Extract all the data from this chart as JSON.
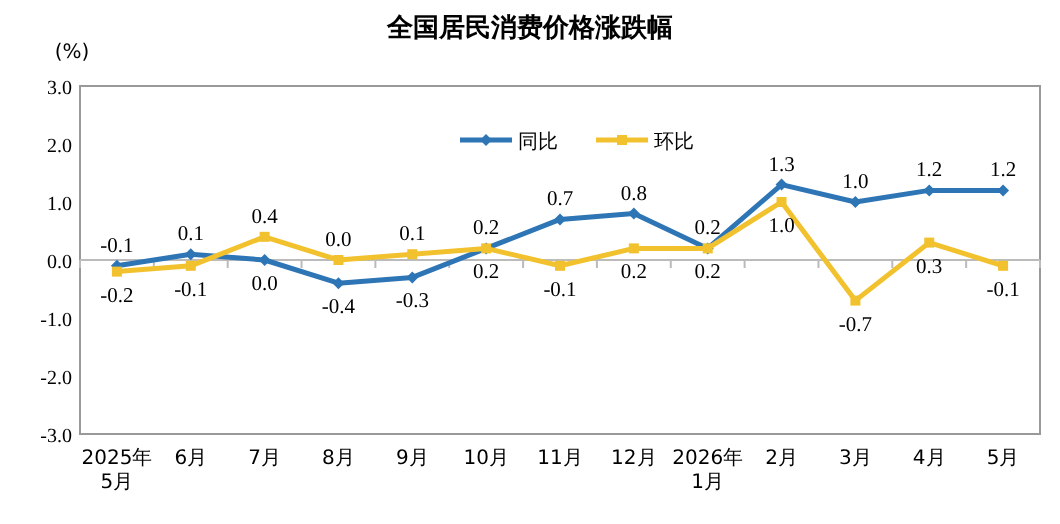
{
  "chart_data": {
    "type": "line",
    "title": "全国居民消费价格涨跌幅",
    "ylabel": "(%)",
    "categories": [
      "2025年\n5月",
      "6月",
      "7月",
      "8月",
      "9月",
      "10月",
      "11月",
      "12月",
      "2026年\n1月",
      "2月",
      "3月",
      "4月",
      "5月"
    ],
    "series": [
      {
        "name": "同比",
        "color": "#2e75b6",
        "marker": "diamond",
        "values": [
          -0.1,
          0.1,
          0.0,
          -0.4,
          -0.3,
          0.2,
          0.7,
          0.8,
          0.2,
          1.3,
          1.0,
          1.2,
          1.2
        ],
        "value_labels": [
          "-0.1",
          "0.1",
          "0.0",
          "-0.4",
          "-0.3",
          "0.2",
          "0.7",
          "0.8",
          "0.2",
          "1.3",
          "1.0",
          "1.2",
          "1.2"
        ]
      },
      {
        "name": "环比",
        "color": "#f2c12e",
        "marker": "square",
        "values": [
          -0.2,
          -0.1,
          0.4,
          0.0,
          0.1,
          0.2,
          -0.1,
          0.2,
          0.2,
          1.0,
          -0.7,
          0.3,
          -0.1
        ],
        "value_labels": [
          "-0.2",
          "-0.1",
          "0.4",
          "0.0",
          "0.1",
          "0.2",
          "-0.1",
          "0.2",
          "0.2",
          "1.0",
          "-0.7",
          "0.3",
          "-0.1"
        ]
      }
    ],
    "ylim": [
      -3,
      3
    ],
    "yticks": [
      {
        "value": 3,
        "label": "3.0"
      },
      {
        "value": 2,
        "label": "2.0"
      },
      {
        "value": 1,
        "label": "1.0"
      },
      {
        "value": 0,
        "label": "0.0"
      },
      {
        "value": -1,
        "label": "-1.0"
      },
      {
        "value": -2,
        "label": "-2.0"
      },
      {
        "value": -3,
        "label": "-3.0"
      }
    ],
    "legend": "top",
    "line_style": "solid"
  }
}
